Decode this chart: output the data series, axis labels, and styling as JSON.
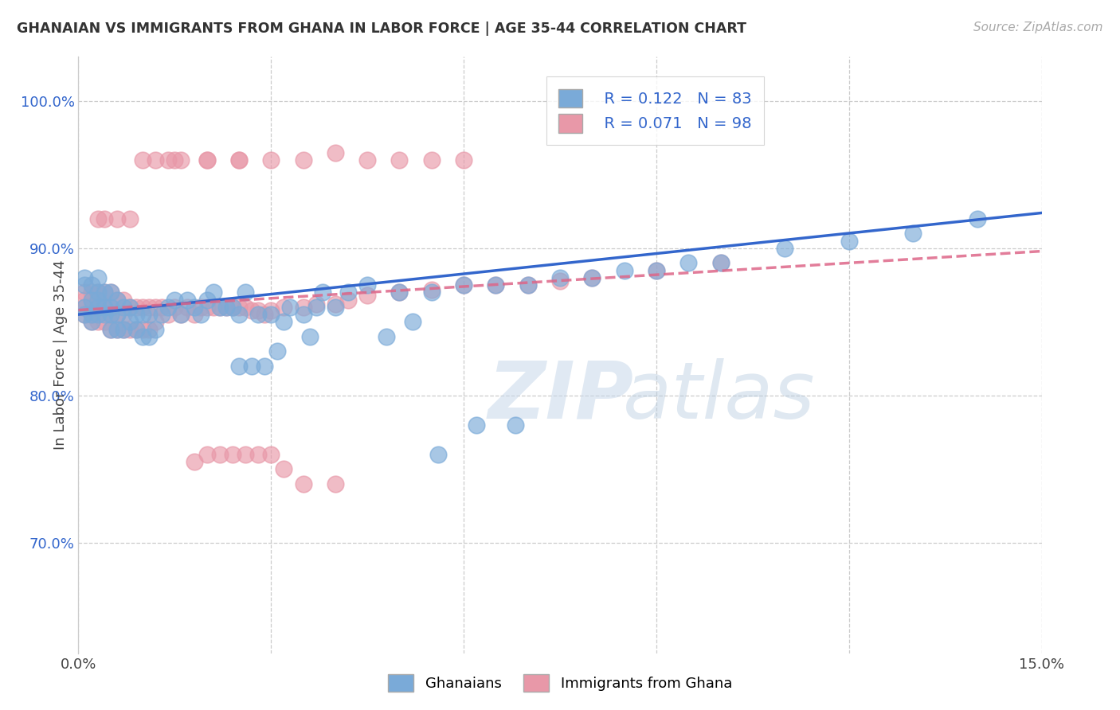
{
  "title": "GHANAIAN VS IMMIGRANTS FROM GHANA IN LABOR FORCE | AGE 35-44 CORRELATION CHART",
  "source": "Source: ZipAtlas.com",
  "ylabel": "In Labor Force | Age 35-44",
  "ytick_labels": [
    "70.0%",
    "80.0%",
    "90.0%",
    "100.0%"
  ],
  "ytick_values": [
    0.7,
    0.8,
    0.9,
    1.0
  ],
  "xlim": [
    0.0,
    0.15
  ],
  "ylim": [
    0.625,
    1.03
  ],
  "blue_color": "#7aaad8",
  "pink_color": "#e898a8",
  "trend_blue": "#3366cc",
  "trend_pink": "#dd6688",
  "watermark_zip": "ZIP",
  "watermark_atlas": "atlas",
  "trend_blue_x0": 0.0,
  "trend_blue_y0": 0.855,
  "trend_blue_x1": 0.15,
  "trend_blue_y1": 0.924,
  "trend_pink_x0": 0.0,
  "trend_pink_y0": 0.858,
  "trend_pink_x1": 0.15,
  "trend_pink_y1": 0.898,
  "scatter_blue_x": [
    0.001,
    0.001,
    0.001,
    0.001,
    0.002,
    0.002,
    0.002,
    0.002,
    0.003,
    0.003,
    0.003,
    0.003,
    0.003,
    0.004,
    0.004,
    0.004,
    0.005,
    0.005,
    0.005,
    0.005,
    0.006,
    0.006,
    0.006,
    0.007,
    0.007,
    0.008,
    0.008,
    0.009,
    0.009,
    0.01,
    0.01,
    0.011,
    0.011,
    0.012,
    0.013,
    0.014,
    0.015,
    0.016,
    0.017,
    0.018,
    0.019,
    0.02,
    0.021,
    0.022,
    0.023,
    0.024,
    0.025,
    0.026,
    0.028,
    0.03,
    0.032,
    0.033,
    0.035,
    0.037,
    0.038,
    0.04,
    0.042,
    0.045,
    0.05,
    0.055,
    0.06,
    0.065,
    0.07,
    0.075,
    0.08,
    0.085,
    0.09,
    0.095,
    0.1,
    0.11,
    0.12,
    0.13,
    0.14,
    0.025,
    0.027,
    0.029,
    0.031,
    0.036,
    0.048,
    0.052,
    0.056,
    0.062,
    0.068
  ],
  "scatter_blue_y": [
    0.855,
    0.86,
    0.875,
    0.88,
    0.85,
    0.855,
    0.865,
    0.875,
    0.855,
    0.86,
    0.865,
    0.87,
    0.88,
    0.855,
    0.86,
    0.87,
    0.845,
    0.855,
    0.86,
    0.87,
    0.845,
    0.855,
    0.865,
    0.845,
    0.86,
    0.85,
    0.86,
    0.845,
    0.855,
    0.84,
    0.855,
    0.84,
    0.855,
    0.845,
    0.855,
    0.86,
    0.865,
    0.855,
    0.865,
    0.86,
    0.855,
    0.865,
    0.87,
    0.86,
    0.86,
    0.86,
    0.855,
    0.87,
    0.855,
    0.855,
    0.85,
    0.86,
    0.855,
    0.86,
    0.87,
    0.86,
    0.87,
    0.875,
    0.87,
    0.87,
    0.875,
    0.875,
    0.875,
    0.88,
    0.88,
    0.885,
    0.885,
    0.89,
    0.89,
    0.9,
    0.905,
    0.91,
    0.92,
    0.82,
    0.82,
    0.82,
    0.83,
    0.84,
    0.84,
    0.85,
    0.76,
    0.78,
    0.78
  ],
  "scatter_pink_x": [
    0.001,
    0.001,
    0.001,
    0.001,
    0.002,
    0.002,
    0.002,
    0.002,
    0.003,
    0.003,
    0.003,
    0.004,
    0.004,
    0.004,
    0.005,
    0.005,
    0.005,
    0.005,
    0.006,
    0.006,
    0.006,
    0.007,
    0.007,
    0.007,
    0.008,
    0.008,
    0.009,
    0.009,
    0.01,
    0.01,
    0.011,
    0.011,
    0.012,
    0.012,
    0.013,
    0.014,
    0.015,
    0.016,
    0.017,
    0.018,
    0.019,
    0.02,
    0.021,
    0.022,
    0.023,
    0.024,
    0.025,
    0.026,
    0.027,
    0.028,
    0.029,
    0.03,
    0.032,
    0.035,
    0.037,
    0.04,
    0.042,
    0.045,
    0.05,
    0.055,
    0.06,
    0.065,
    0.07,
    0.075,
    0.08,
    0.09,
    0.1,
    0.055,
    0.06,
    0.04,
    0.045,
    0.05,
    0.02,
    0.025,
    0.03,
    0.035,
    0.015,
    0.02,
    0.025,
    0.01,
    0.012,
    0.014,
    0.016,
    0.018,
    0.02,
    0.022,
    0.024,
    0.026,
    0.028,
    0.03,
    0.032,
    0.035,
    0.04,
    0.008,
    0.006,
    0.004,
    0.003
  ],
  "scatter_pink_y": [
    0.855,
    0.86,
    0.865,
    0.87,
    0.85,
    0.855,
    0.86,
    0.87,
    0.85,
    0.86,
    0.87,
    0.85,
    0.86,
    0.87,
    0.845,
    0.855,
    0.86,
    0.87,
    0.845,
    0.855,
    0.865,
    0.845,
    0.855,
    0.865,
    0.845,
    0.86,
    0.845,
    0.86,
    0.845,
    0.86,
    0.845,
    0.86,
    0.85,
    0.86,
    0.86,
    0.855,
    0.86,
    0.855,
    0.86,
    0.855,
    0.86,
    0.86,
    0.86,
    0.86,
    0.86,
    0.86,
    0.86,
    0.86,
    0.858,
    0.858,
    0.855,
    0.858,
    0.86,
    0.86,
    0.862,
    0.862,
    0.865,
    0.868,
    0.87,
    0.872,
    0.875,
    0.875,
    0.875,
    0.878,
    0.88,
    0.885,
    0.89,
    0.96,
    0.96,
    0.965,
    0.96,
    0.96,
    0.96,
    0.96,
    0.96,
    0.96,
    0.96,
    0.96,
    0.96,
    0.96,
    0.96,
    0.96,
    0.96,
    0.755,
    0.76,
    0.76,
    0.76,
    0.76,
    0.76,
    0.76,
    0.75,
    0.74,
    0.74,
    0.92,
    0.92,
    0.92,
    0.92
  ]
}
